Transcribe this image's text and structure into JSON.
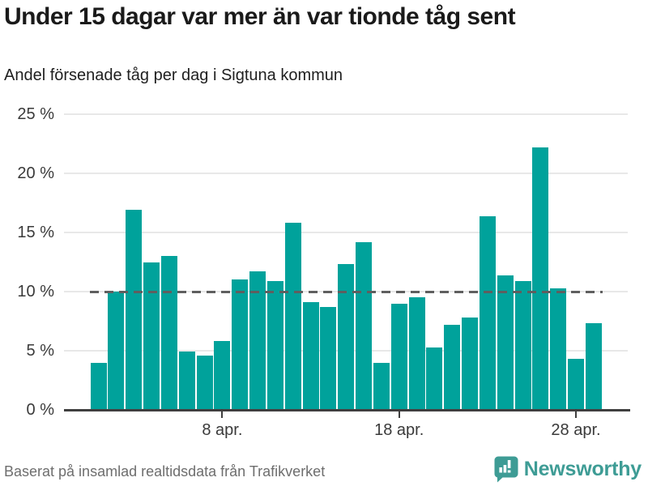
{
  "header": {
    "title": "Under 15 dagar var mer än var tionde tåg sent",
    "subtitle": "Andel försenade tåg per dag i Sigtuna kommun"
  },
  "footer": {
    "source": "Baserat på insamlad realtidsdata från Trafikverket",
    "brand": "Newsworthy"
  },
  "colors": {
    "bar": "#00A29B",
    "brand_teal": "#3E9C95",
    "gridline": "#e8e8e8",
    "reference_line": "#5f5f5f",
    "axis": "#3f3f3f",
    "title_text": "#1a1a1a",
    "axis_text": "#3a3a3a",
    "source_text": "#6e6e6e"
  },
  "chart_data": {
    "type": "bar",
    "title": "Under 15 dagar var mer än var tionde tåg sent",
    "subtitle": "Andel försenade tåg per dag i Sigtuna kommun",
    "unit": "%",
    "categories": [
      "1 apr.",
      "2 apr.",
      "3 apr.",
      "4 apr.",
      "5 apr.",
      "6 apr.",
      "7 apr.",
      "8 apr.",
      "9 apr.",
      "10 apr.",
      "11 apr.",
      "12 apr.",
      "13 apr.",
      "14 apr.",
      "15 apr.",
      "16 apr.",
      "17 apr.",
      "18 apr.",
      "19 apr.",
      "20 apr.",
      "21 apr.",
      "22 apr.",
      "23 apr.",
      "24 apr.",
      "25 apr.",
      "26 apr.",
      "27 apr.",
      "28 apr.",
      "29 apr."
    ],
    "values": [
      4.0,
      10.0,
      16.9,
      12.5,
      13.0,
      4.9,
      4.6,
      5.8,
      11.0,
      11.7,
      10.9,
      15.8,
      9.1,
      8.7,
      12.3,
      14.2,
      4.0,
      9.0,
      9.5,
      5.3,
      7.2,
      7.8,
      16.4,
      11.4,
      10.9,
      22.2,
      10.3,
      4.3,
      7.3
    ],
    "ylim": [
      0,
      25
    ],
    "yticks": [
      {
        "value": 0,
        "label": "0 %"
      },
      {
        "value": 5,
        "label": "5 %"
      },
      {
        "value": 10,
        "label": "10 %"
      },
      {
        "value": 15,
        "label": "15 %"
      },
      {
        "value": 20,
        "label": "20 %"
      },
      {
        "value": 25,
        "label": "25 %"
      }
    ],
    "xticks": [
      {
        "day": 8,
        "label": "8 apr."
      },
      {
        "day": 18,
        "label": "18 apr."
      },
      {
        "day": 28,
        "label": "28 apr."
      }
    ],
    "reference_line": {
      "value": 10,
      "style": "dashed"
    },
    "grid": true,
    "legend": "none",
    "xlabel": "",
    "ylabel": ""
  }
}
